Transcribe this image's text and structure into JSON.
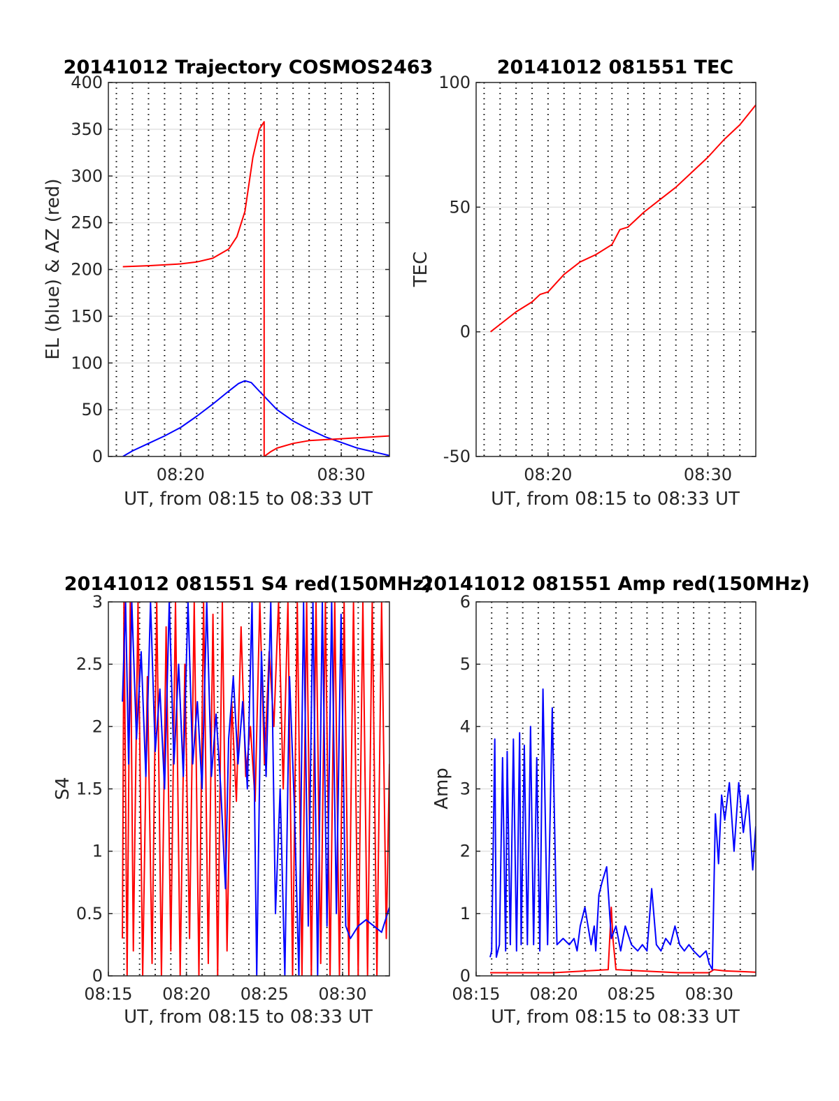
{
  "chart_data": [
    {
      "type": "line",
      "title": "20141012 Trajectory COSMOS2463",
      "xlabel": "UT, from 08:15 to 08:33 UT",
      "ylabel": "EL (blue) & AZ (red)",
      "x_unit": "minute of 08h UT",
      "xlim": [
        15.5,
        33
      ],
      "ylim": [
        0,
        400
      ],
      "x_ticks": [
        20,
        30
      ],
      "x_tick_labels": [
        "08:20",
        "08:30"
      ],
      "y_ticks": [
        0,
        50,
        100,
        150,
        200,
        250,
        300,
        350,
        400
      ],
      "grid": {
        "horizontal": true,
        "vertical_dotted_every_minute": true
      },
      "colors": {
        "series1": "#0000ff",
        "series2": "#ff0000"
      },
      "series": [
        {
          "color": "#0000ff",
          "x": [
            16.4,
            17,
            18,
            19,
            20,
            21,
            22,
            23,
            23.6,
            24,
            24.4,
            25,
            26,
            27,
            28,
            29,
            30,
            31,
            32,
            33
          ],
          "y": [
            0,
            6,
            14,
            22,
            31,
            43,
            56,
            70,
            78,
            81,
            79,
            68,
            50,
            38,
            29,
            21,
            15,
            9,
            5,
            1
          ]
        },
        {
          "color": "#ff0000",
          "x": [
            16.4,
            18,
            20,
            21,
            22,
            23,
            23.5,
            24,
            24.5,
            24.9,
            25.2,
            25.2,
            25.6,
            26,
            27,
            28,
            30,
            33
          ],
          "y": [
            203,
            204,
            206,
            208,
            212,
            222,
            235,
            262,
            320,
            350,
            358,
            0,
            5,
            9,
            14,
            17,
            19,
            22
          ]
        }
      ]
    },
    {
      "type": "line",
      "title": "20141012 081551 TEC",
      "xlabel": "UT, from 08:15 to 08:33 UT",
      "ylabel": "TEC",
      "x_unit": "minute of 08h UT",
      "xlim": [
        15.5,
        33
      ],
      "ylim": [
        -50,
        100
      ],
      "x_ticks": [
        20,
        30
      ],
      "x_tick_labels": [
        "08:20",
        "08:30"
      ],
      "y_ticks": [
        -50,
        0,
        50,
        100
      ],
      "grid": {
        "horizontal": true,
        "vertical_dotted_every_minute": true
      },
      "colors": {
        "series1": "#ff0000"
      },
      "series": [
        {
          "color": "#ff0000",
          "x": [
            16.4,
            17,
            18,
            19,
            19.5,
            20,
            21,
            22,
            23,
            24,
            24.5,
            25,
            26,
            27,
            28,
            29,
            30,
            31,
            32,
            33
          ],
          "y": [
            0,
            3,
            8,
            12,
            15,
            16,
            23,
            28,
            31,
            35,
            41,
            42,
            48,
            53,
            58,
            64,
            70,
            77,
            83,
            91
          ]
        }
      ]
    },
    {
      "type": "line",
      "title": "20141012 081551 S4 red(150MHz)",
      "xlabel": "UT, from 08:15 to 08:33 UT",
      "ylabel": "S4",
      "x_unit": "minute of 08h UT",
      "xlim": [
        15,
        33
      ],
      "ylim": [
        0,
        3
      ],
      "x_ticks": [
        15,
        20,
        25,
        30
      ],
      "x_tick_labels": [
        "08:15",
        "08:20",
        "08:25",
        "08:30"
      ],
      "y_ticks": [
        0,
        0.5,
        1,
        1.5,
        2,
        2.5,
        3
      ],
      "grid": {
        "horizontal": true,
        "vertical_dotted_every_minute": true
      },
      "colors": {
        "series1": "#ff0000",
        "series2": "#0000ff"
      },
      "series": [
        {
          "color": "#ff0000",
          "x": [
            15.9,
            16.0,
            16.2,
            16.4,
            16.6,
            16.9,
            17.2,
            17.5,
            17.8,
            18.1,
            18.4,
            18.7,
            19.0,
            19.3,
            19.6,
            19.9,
            20.2,
            20.5,
            20.8,
            21.1,
            21.4,
            21.7,
            22.0,
            22.3,
            22.6,
            22.9,
            23.2,
            23.5,
            23.8,
            24.1,
            24.4,
            24.7,
            25.0,
            25.3,
            25.6,
            25.9,
            26.2,
            26.5,
            26.8,
            27.1,
            27.4,
            27.7,
            28.0,
            28.3,
            28.6,
            28.9,
            29.2,
            29.5,
            29.8,
            30.1,
            30.4,
            30.7,
            31.0,
            31.3,
            31.6,
            31.9,
            32.2,
            32.5,
            32.8,
            33.0
          ],
          "y": [
            0.3,
            3.0,
            0.0,
            3.0,
            0.2,
            3.0,
            0.0,
            2.4,
            0.1,
            3.0,
            0.0,
            2.8,
            0.2,
            3.0,
            0.0,
            2.5,
            0.3,
            3.0,
            0.0,
            3.0,
            0.1,
            2.9,
            0.0,
            3.0,
            0.2,
            2.2,
            1.4,
            2.8,
            1.6,
            2.0,
            1.4,
            3.0,
            1.7,
            2.6,
            2.0,
            3.0,
            1.5,
            3.0,
            0.0,
            3.0,
            0.0,
            3.0,
            0.0,
            3.0,
            0.1,
            3.0,
            0.0,
            3.0,
            0.0,
            3.0,
            0.0,
            3.0,
            0.0,
            3.0,
            0.0,
            3.0,
            0.0,
            3.0,
            0.3,
            1.7
          ]
        },
        {
          "color": "#0000ff",
          "x": [
            15.9,
            16.1,
            16.3,
            16.5,
            16.8,
            17.1,
            17.4,
            17.7,
            18.0,
            18.3,
            18.6,
            18.9,
            19.2,
            19.5,
            19.8,
            20.1,
            20.4,
            20.7,
            21.0,
            21.3,
            21.6,
            21.9,
            22.2,
            22.5,
            22.7,
            23.0,
            23.3,
            23.6,
            23.9,
            24.2,
            24.5,
            24.8,
            25.1,
            25.4,
            25.7,
            26.0,
            26.3,
            26.6,
            26.9,
            27.2,
            27.5,
            27.8,
            28.1,
            28.4,
            28.7,
            29.0,
            29.3,
            29.6,
            29.9,
            30.2,
            30.5,
            31.0,
            31.5,
            32.0,
            32.5,
            33.0
          ],
          "y": [
            2.2,
            3.0,
            1.7,
            3.0,
            1.9,
            2.6,
            1.6,
            3.0,
            1.8,
            2.3,
            1.5,
            3.0,
            1.7,
            2.5,
            1.6,
            3.0,
            1.7,
            2.2,
            1.5,
            3.0,
            1.6,
            2.1,
            1.5,
            0.7,
            1.9,
            2.4,
            1.7,
            2.2,
            1.5,
            3.0,
            0.0,
            2.6,
            1.6,
            3.0,
            0.5,
            1.5,
            0.0,
            2.4,
            1.4,
            0.0,
            3.0,
            0.4,
            3.0,
            0.0,
            3.0,
            0.4,
            3.0,
            0.5,
            2.9,
            0.4,
            0.3,
            0.4,
            0.45,
            0.4,
            0.35,
            0.55
          ]
        }
      ]
    },
    {
      "type": "line",
      "title": "20141012 081551 Amp red(150MHz)",
      "xlabel": "UT, from 08:15 to 08:33 UT",
      "ylabel": "Amp",
      "x_unit": "minute of 08h UT",
      "xlim": [
        15,
        33
      ],
      "ylim": [
        0,
        6
      ],
      "x_ticks": [
        15,
        20,
        25,
        30
      ],
      "x_tick_labels": [
        "08:15",
        "08:20",
        "08:25",
        "08:30"
      ],
      "y_ticks": [
        0,
        1,
        2,
        3,
        4,
        5,
        6
      ],
      "grid": {
        "horizontal": true,
        "vertical_dotted_every_minute": true
      },
      "colors": {
        "series1": "#ff0000",
        "series2": "#0000ff"
      },
      "series": [
        {
          "color": "#ff0000",
          "x": [
            15.9,
            20,
            23.5,
            23.7,
            23.8,
            24,
            28,
            30,
            30.3,
            31,
            32,
            33
          ],
          "y": [
            0.05,
            0.05,
            0.1,
            1.1,
            0.6,
            0.1,
            0.05,
            0.05,
            0.1,
            0.08,
            0.07,
            0.06
          ]
        },
        {
          "color": "#0000ff",
          "x": [
            15.9,
            16.0,
            16.2,
            16.3,
            16.5,
            16.7,
            16.9,
            17.0,
            17.2,
            17.4,
            17.6,
            17.8,
            17.9,
            18.1,
            18.3,
            18.5,
            18.7,
            18.9,
            19.1,
            19.3,
            19.6,
            19.9,
            20.2,
            20.6,
            21.0,
            21.3,
            21.5,
            21.7,
            22.0,
            22.4,
            22.6,
            22.7,
            22.9,
            23.1,
            23.4,
            23.7,
            24.0,
            24.3,
            24.6,
            25.0,
            25.4,
            25.7,
            26.0,
            26.3,
            26.6,
            26.9,
            27.2,
            27.5,
            27.8,
            28.1,
            28.4,
            28.7,
            29.0,
            29.4,
            29.8,
            30.0,
            30.2,
            30.4,
            30.6,
            30.8,
            31.0,
            31.3,
            31.6,
            31.9,
            32.2,
            32.5,
            32.8,
            33.0
          ],
          "y": [
            0.3,
            0.4,
            3.8,
            0.3,
            0.5,
            3.5,
            0.4,
            3.6,
            0.5,
            3.8,
            0.4,
            3.9,
            0.5,
            3.7,
            0.5,
            4.0,
            0.5,
            3.5,
            0.4,
            4.6,
            0.5,
            4.3,
            0.5,
            0.6,
            0.5,
            0.6,
            0.4,
            0.8,
            1.1,
            0.5,
            0.8,
            0.4,
            1.3,
            1.5,
            1.75,
            0.6,
            0.8,
            0.4,
            0.8,
            0.5,
            0.4,
            0.5,
            0.4,
            1.4,
            0.5,
            0.4,
            0.6,
            0.5,
            0.8,
            0.5,
            0.4,
            0.5,
            0.4,
            0.3,
            0.4,
            0.2,
            0.1,
            2.6,
            1.8,
            2.9,
            2.5,
            3.1,
            2.0,
            3.1,
            2.3,
            2.9,
            1.7,
            2.4
          ]
        }
      ]
    }
  ]
}
